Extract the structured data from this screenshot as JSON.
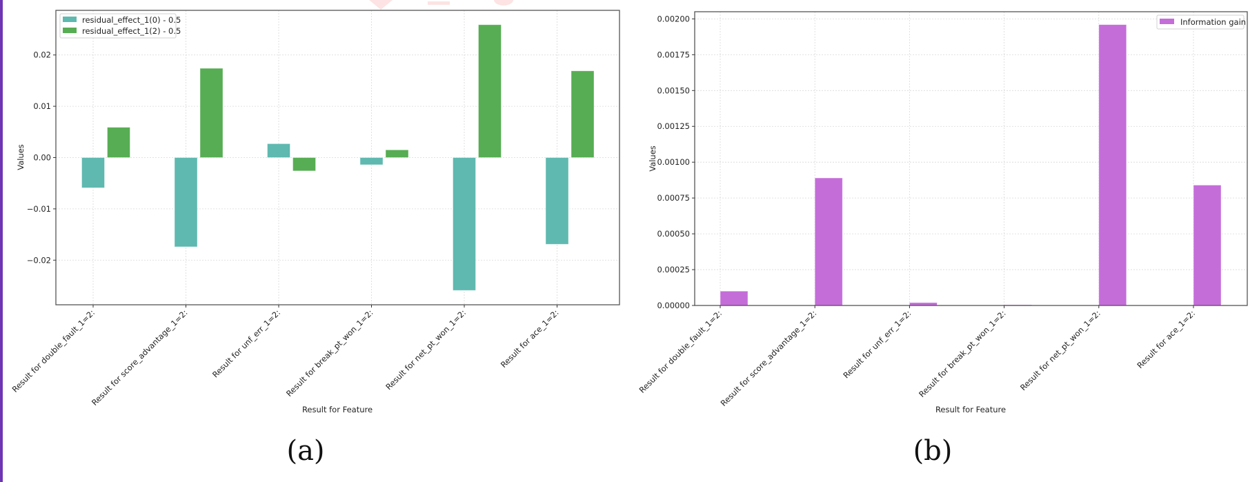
{
  "colors": {
    "left_border": "#6f35b4",
    "teal": "#5fb9b0",
    "green": "#57ad53",
    "purple": "#c46dd9",
    "watermark": "#fde3e3"
  },
  "chart_data": [
    {
      "type": "bar",
      "caption": "(a)",
      "categories": [
        "Result for double_fault_1=2:",
        "Result for score_advantage_1=2:",
        "Result for unf_err_1=2:",
        "Result for break_pt_won_1=2:",
        "Result for net_pt_won_1=2:",
        "Result for ace_1=2:"
      ],
      "series": [
        {
          "name": "residual_effect_1(0) - 0.5",
          "color_key": "teal",
          "values": [
            -0.0059,
            -0.0174,
            0.0027,
            -0.0014,
            -0.0259,
            -0.0169
          ]
        },
        {
          "name": "residual_effect_1(2) - 0.5",
          "color_key": "green",
          "values": [
            0.0059,
            0.0174,
            -0.0026,
            0.0015,
            0.0259,
            0.0169
          ]
        }
      ],
      "xlabel": "Result for Feature",
      "ylabel": "Values",
      "ylim": [
        -0.0287,
        0.0287
      ],
      "yticks": [
        -0.02,
        -0.01,
        0.0,
        0.01,
        0.02
      ],
      "ytick_labels": [
        "−0.02",
        "−0.01",
        "0.00",
        "0.01",
        "0.02"
      ],
      "grid": true,
      "legend_position": "top-left"
    },
    {
      "type": "bar",
      "caption": "(b)",
      "categories": [
        "Result for double_fault_1=2:",
        "Result for score_advantage_1=2:",
        "Result for unf_err_1=2:",
        "Result for break_pt_won_1=2:",
        "Result for net_pt_won_1=2:",
        "Result for ace_1=2:"
      ],
      "series": [
        {
          "name": "Information gain",
          "color_key": "purple",
          "values": [
            0.0001,
            0.00089,
            2e-05,
            5e-06,
            0.00196,
            0.00084
          ]
        }
      ],
      "xlabel": "Result for Feature",
      "ylabel": "Values",
      "ylim": [
        0,
        0.00205
      ],
      "yticks": [
        0,
        0.00025,
        0.0005,
        0.00075,
        0.001,
        0.00125,
        0.0015,
        0.00175,
        0.002
      ],
      "ytick_labels": [
        "0.00000",
        "0.00025",
        "0.00050",
        "0.00075",
        "0.00100",
        "0.00125",
        "0.00150",
        "0.00175",
        "0.00200"
      ],
      "grid": true,
      "legend_position": "top-right"
    }
  ]
}
